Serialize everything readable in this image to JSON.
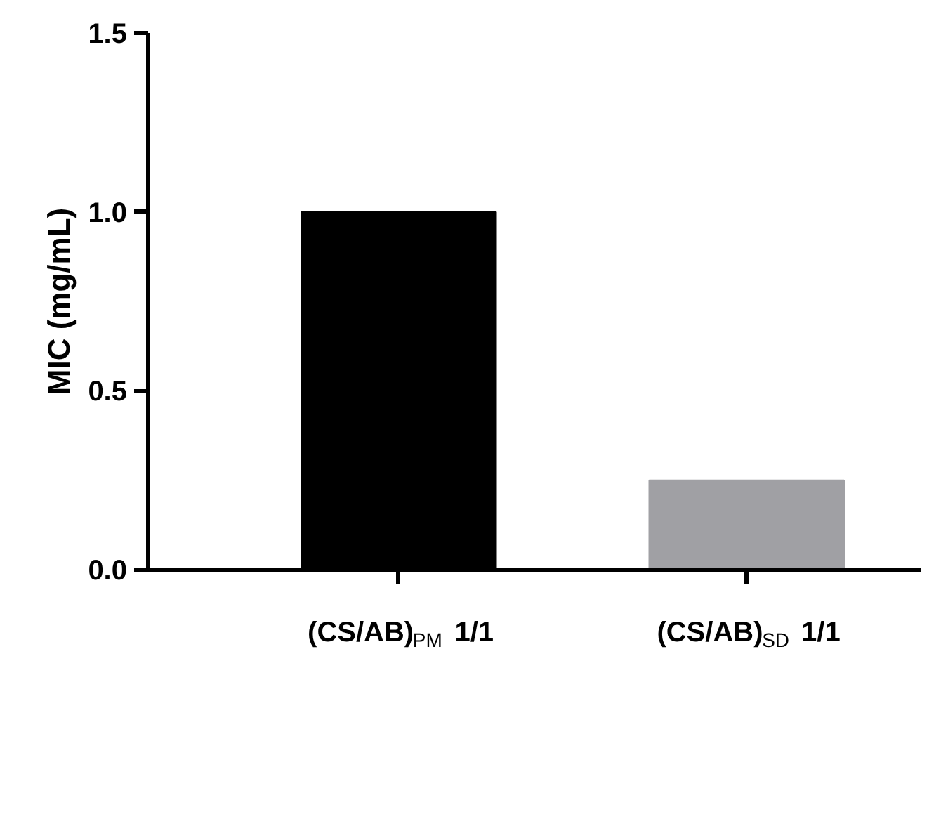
{
  "chart_data": {
    "type": "bar",
    "ylabel": "MIC (mg/mL)",
    "categories": [
      "(CS/AB)$_{PM}$ 1/1",
      "(CS/AB)$_{SD}$ 1/1"
    ],
    "values": [
      1.0,
      0.25
    ],
    "colors": [
      "#000000",
      "#a0a0a4"
    ],
    "ylim": [
      0,
      1.5
    ],
    "yticks": [
      {
        "value": 0,
        "label": "0.0"
      },
      {
        "value": 0.5,
        "label": "0.5"
      },
      {
        "value": 1.0,
        "label": "1.0"
      },
      {
        "value": 1.5,
        "label": "1.5"
      }
    ],
    "grid": false
  }
}
